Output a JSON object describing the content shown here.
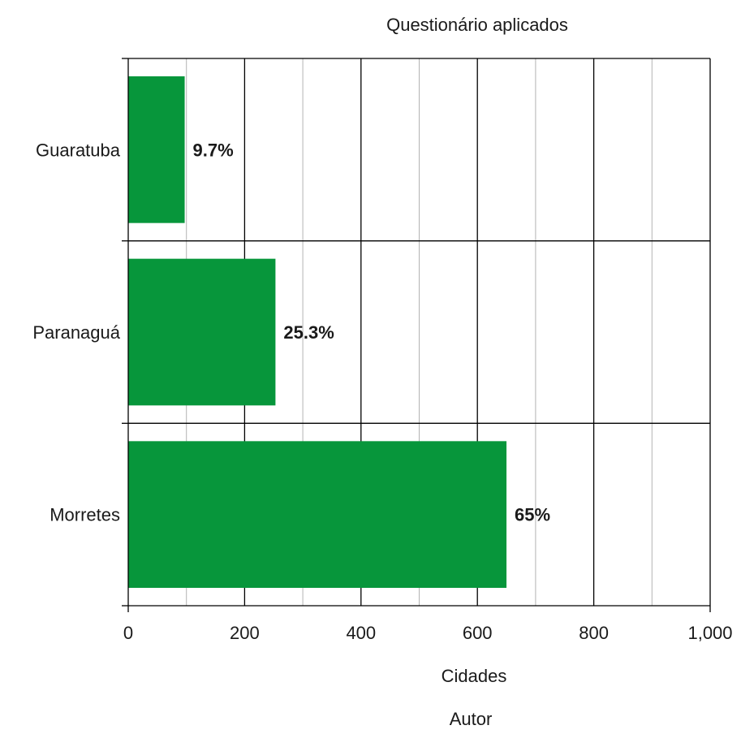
{
  "chart_data": {
    "type": "bar",
    "orientation": "horizontal",
    "title": "Questionário aplicados",
    "xlabel": "Cidades",
    "source": "Autor",
    "categories": [
      "Guaratuba",
      "Paranaguá",
      "Morretes"
    ],
    "values": [
      97,
      253,
      650
    ],
    "data_labels": [
      "9.7%",
      "25.3%",
      "65%"
    ],
    "xlim": [
      0,
      1000
    ],
    "x_ticks": [
      "0",
      "200",
      "400",
      "600",
      "800",
      "1,000"
    ],
    "grid": true,
    "bar_color": "#07963b"
  }
}
